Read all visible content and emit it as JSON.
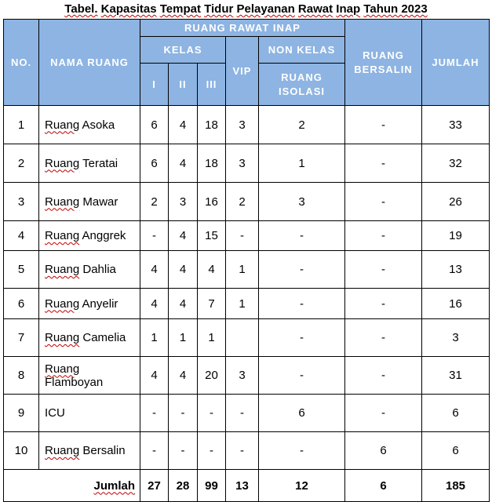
{
  "title": {
    "word_tabel": "Tabel.",
    "word_kapasitas": "Kapasitas",
    "word_tempat": "Tempat",
    "word_tidur": "Tidur",
    "word_pelayanan": "Pelayanan",
    "word_rawat": "Rawat",
    "word_inap": "Inap",
    "word_tahun": "Tahun 2023"
  },
  "header": {
    "no": "NO.",
    "nama_ruang": "NAMA RUANG",
    "ruang_rawat_inap": "RUANG RAWAT INAP",
    "kelas": "KELAS",
    "kelas_i": "I",
    "kelas_ii": "II",
    "kelas_iii": "III",
    "vip": "VIP",
    "non_kelas": "NON KELAS",
    "ruang_isolasi_1": "RUANG",
    "ruang_isolasi_2": "ISOLASI",
    "ruang_bersalin_1": "RUANG",
    "ruang_bersalin_2": "BERSALIN",
    "jumlah": "JUMLAH"
  },
  "rows": [
    {
      "no": "1",
      "prefix": "Ruang",
      "name": "Asoka",
      "i": "6",
      "ii": "4",
      "iii": "18",
      "vip": "3",
      "isolasi": "2",
      "bersalin": "-",
      "jumlah": "33"
    },
    {
      "no": "2",
      "prefix": "Ruang",
      "name": "Teratai",
      "i": "6",
      "ii": "4",
      "iii": "18",
      "vip": "3",
      "isolasi": "1",
      "bersalin": "-",
      "jumlah": "32"
    },
    {
      "no": "3",
      "prefix": "Ruang",
      "name": "Mawar",
      "i": "2",
      "ii": "3",
      "iii": "16",
      "vip": "2",
      "isolasi": "3",
      "bersalin": "-",
      "jumlah": "26"
    },
    {
      "no": "4",
      "prefix": "Ruang",
      "name": "Anggrek",
      "i": "-",
      "ii": "4",
      "iii": "15",
      "vip": "-",
      "isolasi": "-",
      "bersalin": "-",
      "jumlah": "19"
    },
    {
      "no": "5",
      "prefix": "Ruang",
      "name": "Dahlia",
      "i": "4",
      "ii": "4",
      "iii": "4",
      "vip": "1",
      "isolasi": "-",
      "bersalin": "-",
      "jumlah": "13"
    },
    {
      "no": "6",
      "prefix": "Ruang",
      "name": "Anyelir",
      "i": "4",
      "ii": "4",
      "iii": "7",
      "vip": "1",
      "isolasi": "-",
      "bersalin": "-",
      "jumlah": "16"
    },
    {
      "no": "7",
      "prefix": "Ruang",
      "name": "Camelia",
      "i": "1",
      "ii": "1",
      "iii": "1",
      "vip": "",
      "isolasi": "-",
      "bersalin": "-",
      "jumlah": "3"
    },
    {
      "no": "8",
      "prefix": "Ruang",
      "name": "Flamboyan",
      "i": "4",
      "ii": "4",
      "iii": "20",
      "vip": "3",
      "isolasi": "-",
      "bersalin": "-",
      "jumlah": "31"
    },
    {
      "no": "9",
      "prefix": "",
      "name": "ICU",
      "i": "-",
      "ii": "-",
      "iii": "-",
      "vip": "-",
      "isolasi": "6",
      "bersalin": "-",
      "jumlah": "6"
    },
    {
      "no": "10",
      "prefix": "Ruang",
      "name": "Bersalin",
      "i": "-",
      "ii": "-",
      "iii": "-",
      "vip": "-",
      "isolasi": "-",
      "bersalin": "6",
      "jumlah": "6"
    }
  ],
  "total": {
    "label": "Jumlah",
    "i": "27",
    "ii": "28",
    "iii": "99",
    "vip": "13",
    "isolasi": "12",
    "bersalin": "6",
    "jumlah": "185"
  }
}
